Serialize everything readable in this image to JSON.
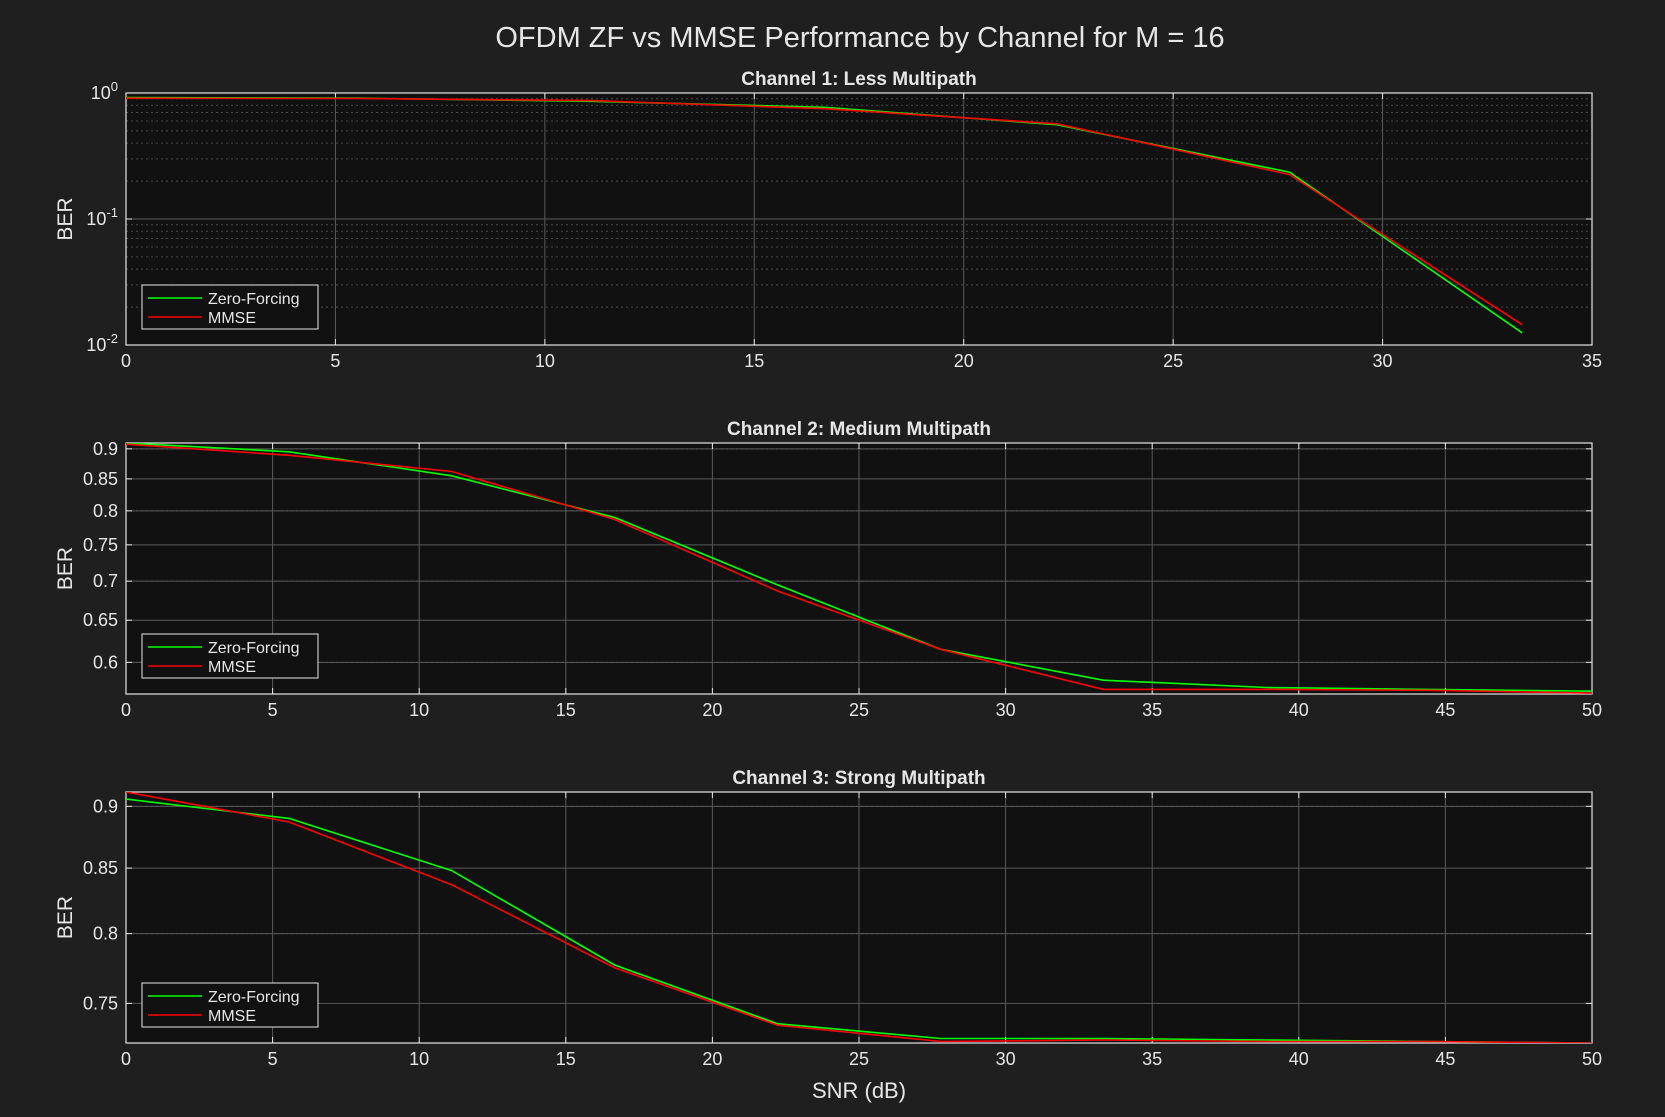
{
  "figure": {
    "title": "OFDM ZF vs MMSE Performance by Channel for M = 16",
    "background": "#1f1f1f",
    "axes_background": "#111111",
    "text_color": "#e6e6e6",
    "axis_color": "#e6e6e6",
    "grid_color": "#5a5a5a"
  },
  "chart_data": [
    {
      "type": "line",
      "title": "Channel 1: Less Multipath",
      "xlabel": "",
      "ylabel": "BER",
      "yscale": "log",
      "xlim": [
        0,
        35
      ],
      "ylim": [
        0.01,
        1
      ],
      "xticks": [
        0,
        5,
        10,
        15,
        20,
        25,
        30,
        35
      ],
      "yticks": [
        {
          "value": 1,
          "base": "10",
          "exp": "0"
        },
        {
          "value": 0.1,
          "base": "10",
          "exp": "-1"
        },
        {
          "value": 0.01,
          "base": "10",
          "exp": "-2"
        }
      ],
      "grid": true,
      "minor_grid": true,
      "legend": "bottom-left",
      "series": [
        {
          "name": "Zero-Forcing",
          "color": "#00ff00",
          "x": [
            0,
            5.56,
            11.11,
            16.67,
            22.22,
            27.78,
            33.33
          ],
          "y": [
            0.92,
            0.91,
            0.86,
            0.77,
            0.56,
            0.235,
            0.0125
          ]
        },
        {
          "name": "MMSE",
          "color": "#ff0000",
          "x": [
            0,
            5.56,
            11.11,
            16.67,
            22.22,
            27.78,
            33.33
          ],
          "y": [
            0.91,
            0.905,
            0.87,
            0.75,
            0.57,
            0.225,
            0.0145
          ]
        }
      ]
    },
    {
      "type": "line",
      "title": "Channel 2: Medium Multipath",
      "xlabel": "",
      "ylabel": "BER",
      "yscale": "log",
      "xlim": [
        0,
        50
      ],
      "ylim": [
        0.565,
        0.91
      ],
      "xticks": [
        0,
        5,
        10,
        15,
        20,
        25,
        30,
        35,
        40,
        45,
        50
      ],
      "yticks": [
        {
          "value": 0.9,
          "label": "0.9"
        },
        {
          "value": 0.85,
          "label": "0.85"
        },
        {
          "value": 0.8,
          "label": "0.8"
        },
        {
          "value": 0.75,
          "label": "0.75"
        },
        {
          "value": 0.7,
          "label": "0.7"
        },
        {
          "value": 0.65,
          "label": "0.65"
        },
        {
          "value": 0.6,
          "label": "0.6"
        }
      ],
      "grid": true,
      "minor_grid": true,
      "legend": "bottom-left",
      "series": [
        {
          "name": "Zero-Forcing",
          "color": "#00ff00",
          "x": [
            0,
            5.56,
            11.11,
            16.67,
            22.22,
            27.78,
            33.33,
            38.89,
            44.44,
            50
          ],
          "y": [
            0.91,
            0.895,
            0.855,
            0.79,
            0.695,
            0.615,
            0.58,
            0.572,
            0.57,
            0.568
          ]
        },
        {
          "name": "MMSE",
          "color": "#ff0000",
          "x": [
            0,
            5.56,
            11.11,
            16.67,
            22.22,
            27.78,
            33.33,
            38.89,
            44.44,
            50
          ],
          "y": [
            0.908,
            0.889,
            0.862,
            0.787,
            0.687,
            0.615,
            0.57,
            0.57,
            0.569,
            0.566
          ]
        }
      ]
    },
    {
      "type": "line",
      "title": "Channel 3: Strong Multipath",
      "xlabel": "SNR (dB)",
      "ylabel": "BER",
      "yscale": "log",
      "xlim": [
        0,
        50
      ],
      "ylim": [
        0.723,
        0.912
      ],
      "xticks": [
        0,
        5,
        10,
        15,
        20,
        25,
        30,
        35,
        40,
        45,
        50
      ],
      "yticks": [
        {
          "value": 0.9,
          "label": "0.9"
        },
        {
          "value": 0.85,
          "label": "0.85"
        },
        {
          "value": 0.8,
          "label": "0.8"
        },
        {
          "value": 0.75,
          "label": "0.75"
        }
      ],
      "grid": true,
      "minor_grid": true,
      "legend": "bottom-left",
      "series": [
        {
          "name": "Zero-Forcing",
          "color": "#00ff00",
          "x": [
            0,
            5.56,
            11.11,
            16.67,
            22.22,
            27.78,
            33.33,
            38.89,
            44.44,
            50
          ],
          "y": [
            0.906,
            0.89,
            0.848,
            0.777,
            0.736,
            0.726,
            0.726,
            0.725,
            0.724,
            0.723
          ]
        },
        {
          "name": "MMSE",
          "color": "#ff0000",
          "x": [
            0,
            5.56,
            11.11,
            16.67,
            22.22,
            27.78,
            33.33,
            38.89,
            44.44,
            50
          ],
          "y": [
            0.912,
            0.887,
            0.837,
            0.775,
            0.735,
            0.724,
            0.725,
            0.724,
            0.724,
            0.723
          ]
        }
      ]
    }
  ]
}
